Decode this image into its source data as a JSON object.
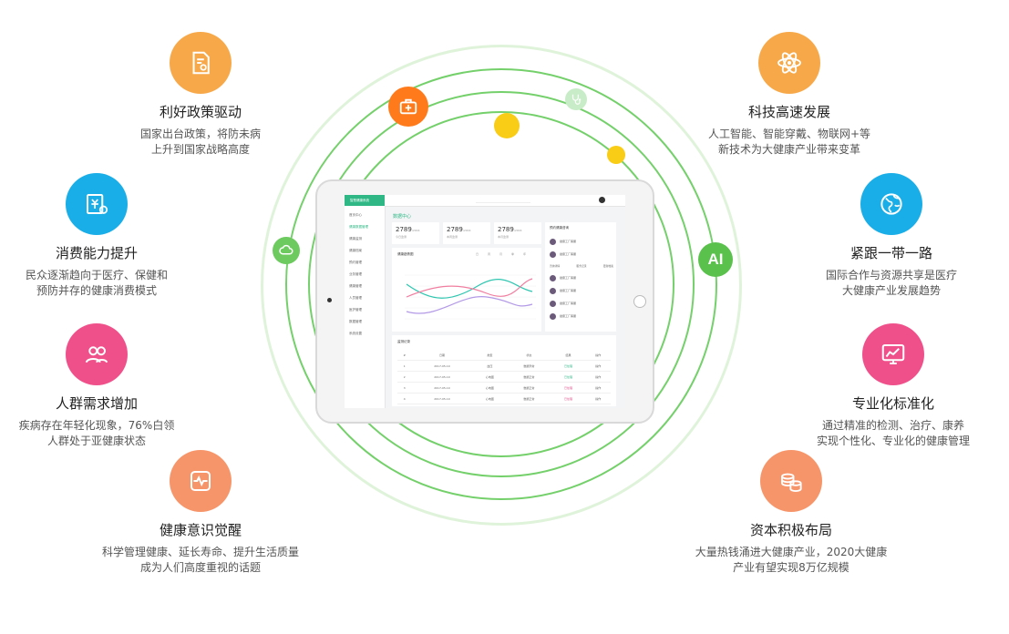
{
  "features_left": [
    {
      "title": "利好政策驱动",
      "desc": [
        "国家出台政策，将防未病",
        "上升到国家战略高度"
      ],
      "color": "#f7a94a",
      "icon": "document-icon"
    },
    {
      "title": "消费能力提升",
      "desc": [
        "民众逐渐趋向于医疗、保健和",
        "预防并存的健康消费模式"
      ],
      "color": "#1aaee8",
      "icon": "bill-icon"
    },
    {
      "title": "人群需求增加",
      "desc": [
        "疾病存在年轻化现象，76%白领",
        "人群处于亚健康状态"
      ],
      "color": "#f0508a",
      "icon": "people-icon"
    },
    {
      "title": "健康意识觉醒",
      "desc": [
        "科学管理健康、延长寿命、提升生活质量",
        "成为人们高度重视的话题"
      ],
      "color": "#f7956a",
      "icon": "heartbeat-icon"
    }
  ],
  "features_right": [
    {
      "title": "科技高速发展",
      "desc": [
        "人工智能、智能穿戴、物联网+等",
        "新技术为大健康产业带来变革"
      ],
      "color": "#f7a94a",
      "icon": "atom-icon"
    },
    {
      "title": "紧跟一带一路",
      "desc": [
        "国际合作与资源共享是医疗",
        "大健康产业发展趋势"
      ],
      "color": "#1aaee8",
      "icon": "globe-icon"
    },
    {
      "title": "专业化标准化",
      "desc": [
        "通过精准的检测、治疗、康养",
        "实现个性化、专业化的健康管理"
      ],
      "color": "#f0508a",
      "icon": "monitor-chart-icon"
    },
    {
      "title": "资本积极布局",
      "desc": [
        "大量热钱涌进大健康产业，2020大健康",
        "产业有望实现8万亿规模"
      ],
      "color": "#f7956a",
      "icon": "coins-icon"
    }
  ],
  "orbit_label": "AI",
  "screen": {
    "logo": "智慧健康系统",
    "nav": [
      "首页中心",
      "健康数据管理",
      "健康监测",
      "健康档案",
      "预约管理",
      "业务管理",
      "健康管理",
      "人员管理",
      "医护管理",
      "数据管理",
      "系统设置"
    ],
    "page_title": "数据中心",
    "stats": [
      {
        "value": "2789",
        "unit": "/2904",
        "label": "今日监测"
      },
      {
        "value": "2789",
        "unit": "/2904",
        "label": "本周监测"
      },
      {
        "value": "2789",
        "unit": "/2904",
        "label": "本月监测"
      }
    ],
    "chart_title": "健康趋势图",
    "chart_tabs": [
      "日",
      "周",
      "月",
      "季",
      "年"
    ],
    "list_title": "预约健康咨询",
    "list_item_name": "健康工厂客服",
    "actions": [
      "咨询详情",
      "服务记录",
      "更新档案"
    ],
    "table_title": "监测记录",
    "table_headers": [
      "#",
      "日期",
      "类型",
      "状态",
      "结果",
      "操作"
    ],
    "table_rows": [
      [
        "1",
        "2017-05-10",
        "血压",
        "数据异常",
        "已处理",
        "操作"
      ],
      [
        "2",
        "2017-05-10",
        "心电图",
        "数据正常",
        "已处理",
        "操作"
      ],
      [
        "3",
        "2017-05-10",
        "心电图",
        "数据正常",
        "已处理",
        "操作"
      ],
      [
        "4",
        "2017-05-10",
        "心电图",
        "数据正常",
        "已处理",
        "操作"
      ],
      [
        "5",
        "2017-05-10",
        "血糖",
        "数据正常",
        "已处理",
        "操作"
      ]
    ]
  }
}
